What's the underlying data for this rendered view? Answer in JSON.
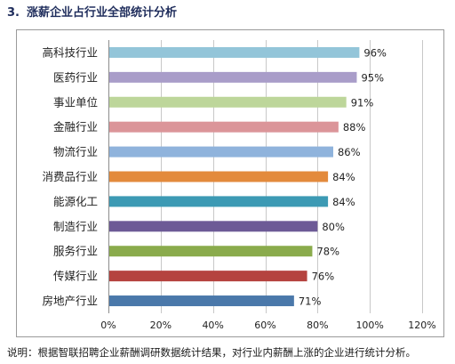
{
  "heading": {
    "number": "3.",
    "title": "涨薪企业占行业全部统计分析"
  },
  "note": "说明：根据智联招聘企业薪酬调研数据统计结果，对行业内薪酬上涨的企业进行统计分析。",
  "chart_data": {
    "type": "bar",
    "orientation": "horizontal",
    "categories": [
      "高科技行业",
      "医药行业",
      "事业单位",
      "金融行业",
      "物流行业",
      "消费品行业",
      "能源化工",
      "制造行业",
      "服务行业",
      "传媒行业",
      "房地产行业"
    ],
    "values": [
      96,
      95,
      91,
      88,
      86,
      84,
      84,
      80,
      78,
      76,
      71
    ],
    "value_labels": [
      "96%",
      "95%",
      "91%",
      "88%",
      "86%",
      "84%",
      "84%",
      "80%",
      "78%",
      "76%",
      "71%"
    ],
    "colors": [
      "#93c5d9",
      "#a99dc9",
      "#bdd69a",
      "#db9599",
      "#8fb3dc",
      "#e38a3c",
      "#3c9ab4",
      "#6d5a96",
      "#8aab4c",
      "#b5433f",
      "#4a78aa"
    ],
    "xlim": [
      0,
      120
    ],
    "xticks": [
      0,
      20,
      40,
      60,
      80,
      100,
      120
    ],
    "xtick_labels": [
      "0%",
      "20%",
      "40%",
      "60%",
      "80%",
      "100%",
      "120%"
    ],
    "grid": true,
    "legend": false
  }
}
